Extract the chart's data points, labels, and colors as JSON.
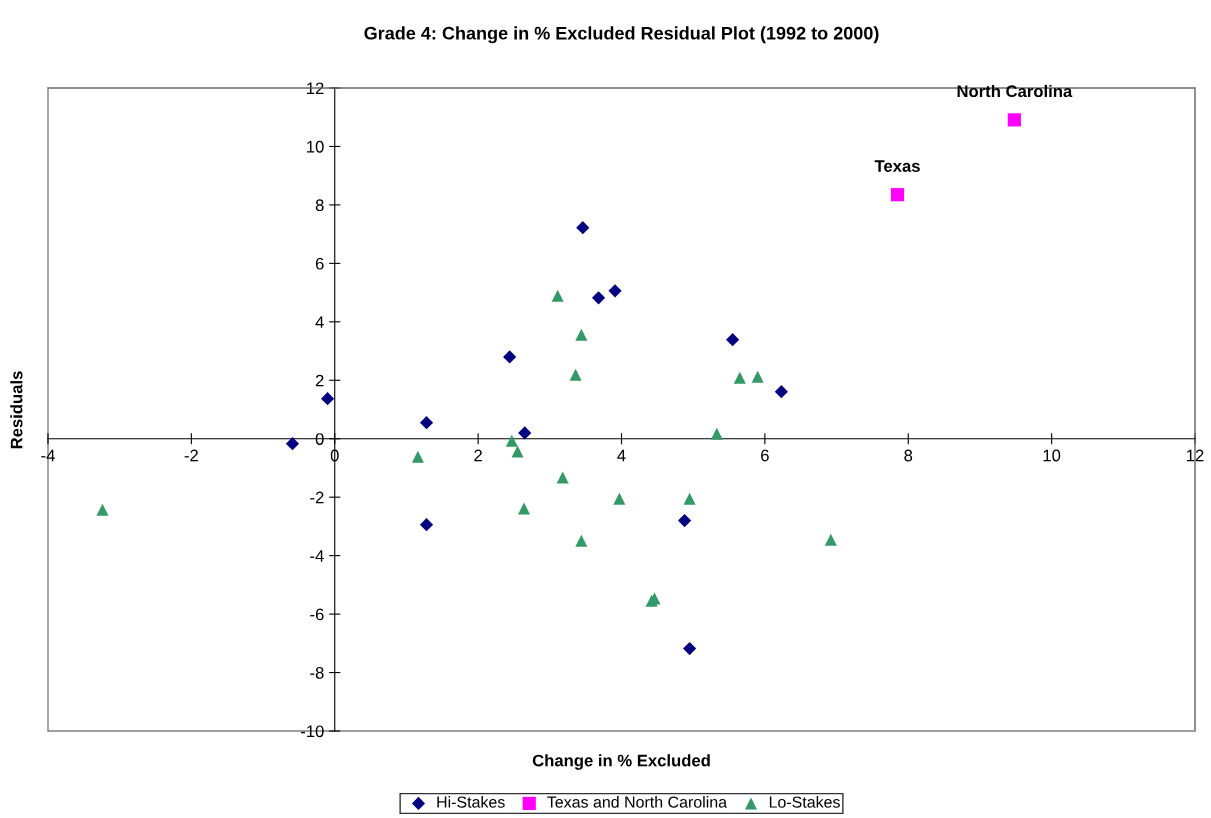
{
  "chart_data": {
    "type": "scatter",
    "title": "Grade 4: Change in % Excluded Residual Plot (1992 to 2000)",
    "xlabel": "Change in % Excluded",
    "ylabel": "Residuals",
    "xlim": [
      -4,
      12
    ],
    "xticks": [
      -4,
      -2,
      0,
      2,
      4,
      6,
      8,
      10,
      12
    ],
    "ylim": [
      -10,
      12
    ],
    "yticks": [
      -10,
      -8,
      -6,
      -4,
      -2,
      0,
      2,
      4,
      6,
      8,
      10,
      12
    ],
    "grid": false,
    "legend": "bottom",
    "series": [
      {
        "name": "Hi-Stakes",
        "color": "#000080",
        "marker": "diamond",
        "x": [
          -0.59,
          -0.1,
          1.28,
          1.28,
          2.44,
          2.65,
          3.46,
          3.68,
          3.91,
          4.88,
          4.95,
          5.55,
          6.23
        ],
        "values": [
          -0.17,
          1.37,
          0.55,
          -2.94,
          2.8,
          0.2,
          7.22,
          4.82,
          5.06,
          -2.8,
          -7.18,
          3.39,
          1.61
        ]
      },
      {
        "name": "Texas and North Carolina",
        "color": "#ff00ff",
        "marker": "square",
        "x": [
          7.85,
          9.48
        ],
        "values": [
          8.35,
          10.91
        ]
      },
      {
        "name": "Lo-Stakes",
        "color": "#339966",
        "marker": "triangle",
        "x": [
          -3.24,
          1.16,
          2.47,
          2.55,
          2.64,
          3.11,
          3.18,
          3.36,
          3.44,
          3.44,
          3.97,
          4.42,
          4.46,
          4.95,
          5.33,
          5.65,
          5.9,
          6.92
        ],
        "values": [
          -2.43,
          -0.62,
          -0.07,
          -0.44,
          -2.39,
          4.89,
          -1.33,
          2.19,
          3.56,
          -3.49,
          -2.05,
          -5.54,
          -5.47,
          -2.05,
          0.17,
          2.09,
          2.12,
          -3.46
        ]
      }
    ],
    "annotations": [
      {
        "text": "Texas",
        "x": 7.85,
        "y": 8.35
      },
      {
        "text": "North Carolina",
        "x": 9.48,
        "y": 10.91
      }
    ]
  }
}
